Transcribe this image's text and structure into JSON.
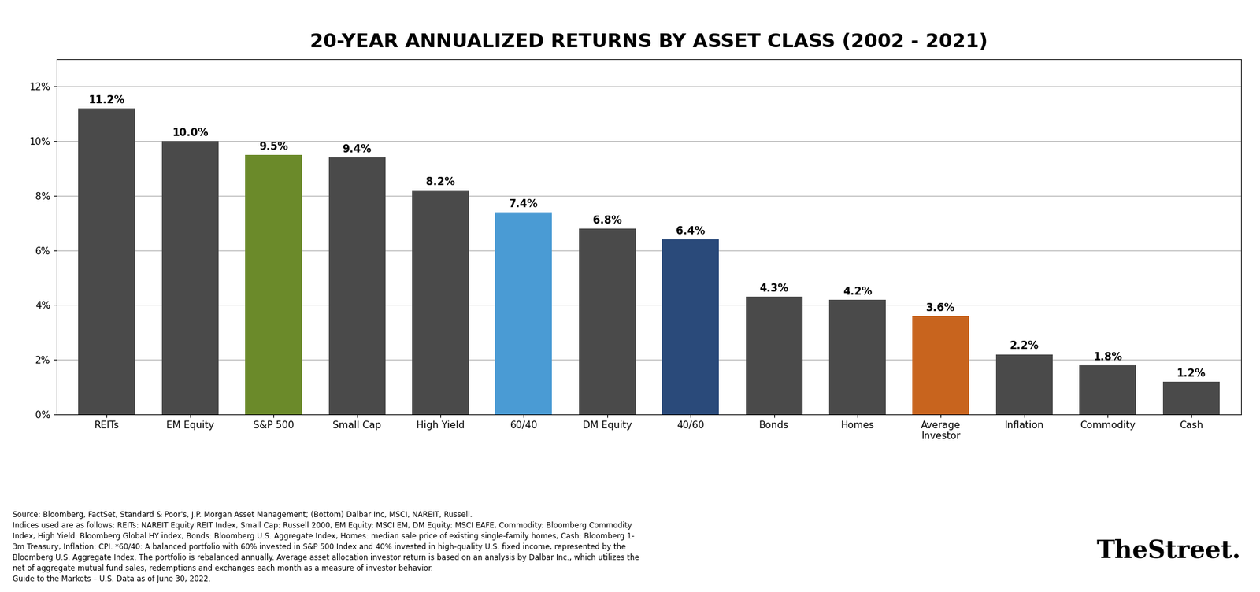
{
  "chart_data": {
    "type": "bar",
    "title": "20-YEAR ANNUALIZED RETURNS BY ASSET CLASS (2002 - 2021)",
    "categories": [
      "REITs",
      "EM Equity",
      "S&P 500",
      "Small Cap",
      "High Yield",
      "60/40",
      "DM Equity",
      "40/60",
      "Bonds",
      "Homes",
      "Average\nInvestor",
      "Inflation",
      "Commodity",
      "Cash"
    ],
    "values": [
      11.2,
      10.0,
      9.5,
      9.4,
      8.2,
      7.4,
      6.8,
      6.4,
      4.3,
      4.2,
      3.6,
      2.2,
      1.8,
      1.2
    ],
    "value_labels": [
      "11.2%",
      "10.0%",
      "9.5%",
      "9.4%",
      "8.2%",
      "7.4%",
      "6.8%",
      "6.4%",
      "4.3%",
      "4.2%",
      "3.6%",
      "2.2%",
      "1.8%",
      "1.2%"
    ],
    "data_labels": true,
    "colors": [
      "#4a4a4a",
      "#4a4a4a",
      "#6b8a2a",
      "#4a4a4a",
      "#4a4a4a",
      "#4a9bd4",
      "#4a4a4a",
      "#2a4a7a",
      "#4a4a4a",
      "#4a4a4a",
      "#c8641e",
      "#4a4a4a",
      "#4a4a4a",
      "#4a4a4a"
    ],
    "ylim": [
      0,
      13
    ],
    "yticks": [
      {
        "value": 0,
        "label": "0%"
      },
      {
        "value": 2,
        "label": "2%"
      },
      {
        "value": 4,
        "label": "4%"
      },
      {
        "value": 6,
        "label": "6%"
      },
      {
        "value": 8,
        "label": "8%"
      },
      {
        "value": 10,
        "label": "10%"
      },
      {
        "value": 12,
        "label": "12%"
      }
    ],
    "grid": true,
    "annotations": [
      "Source: Bloomberg, FactSet, Standard & Poor's, J.P. Morgan Asset Management; (Bottom) Dalbar Inc, MSCI, NAREIT, Russell.\nIndices used are as follows: REITs: NAREIT Equity REIT Index, Small Cap: Russell 2000, EM Equity: MSCI EM, DM Equity: MSCI EAFE, Commodity: Bloomberg Commodity\nIndex, High Yield: Bloomberg Global HY index, Bonds: Bloomberg U.S. Aggregate Index, Homes: median sale price of existing single-family homes, Cash: Bloomberg 1-\n3m Treasury, Inflation: CPI. *60/40: A balanced portfolio with 60% invested in S&P 500 Index and 40% invested in high-quality U.S. fixed income, represented by the\nBloomberg U.S. Aggregate Index. The portfolio is rebalanced annually. Average asset allocation investor return is based on an analysis by Dalbar Inc., which utilizes the\nnet of aggregate mutual fund sales, redemptions and exchanges each month as a measure of investor behavior.\nGuide to the Markets – U.S. Data as of June 30, 2022.",
      "TheStreet."
    ]
  }
}
